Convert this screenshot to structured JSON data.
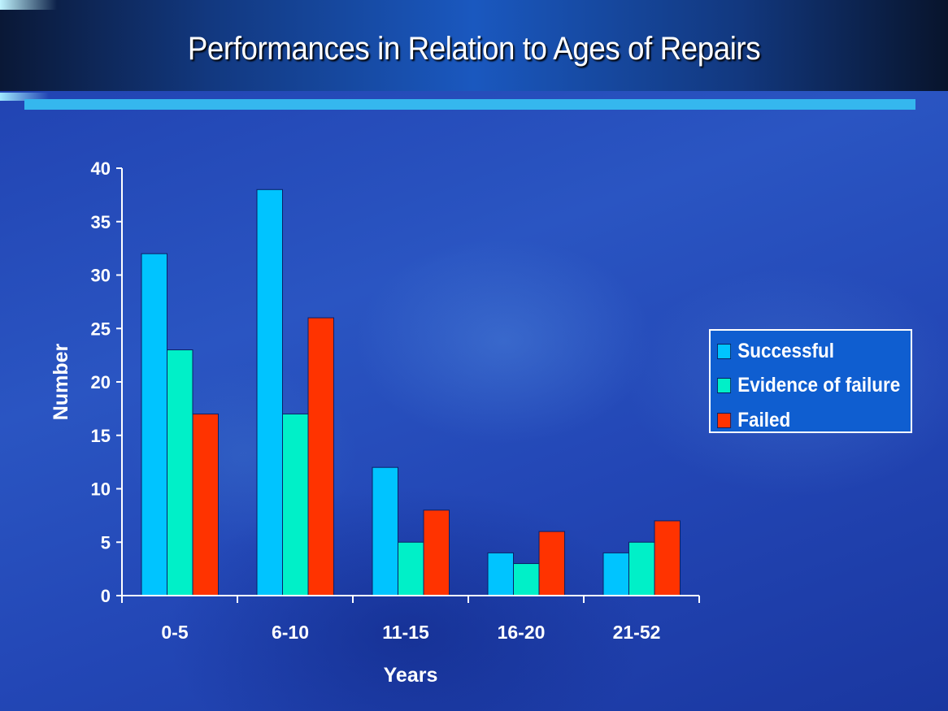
{
  "slide": {
    "title": "Performances in Relation to Ages of Repairs"
  },
  "colors": {
    "header_bar": "#12387f",
    "accent_bar": "#35b7ee",
    "legend_bg": "#0f5ed0",
    "text": "#ffffff"
  },
  "chart_data": {
    "type": "bar",
    "title": "",
    "xlabel": "Years",
    "ylabel": "Number",
    "categories": [
      "0-5",
      "6-10",
      "11-15",
      "16-20",
      "21-52"
    ],
    "ylim": [
      0,
      40
    ],
    "yticks": [
      0,
      5,
      10,
      15,
      20,
      25,
      30,
      35,
      40
    ],
    "grid": false,
    "legend_position": "right",
    "series": [
      {
        "name": "Successful",
        "color": "#00c4ff",
        "values": [
          32,
          38,
          12,
          4,
          4
        ]
      },
      {
        "name": "Evidence of failure",
        "color": "#00f0c8",
        "values": [
          23,
          17,
          5,
          3,
          5
        ]
      },
      {
        "name": "Failed",
        "color": "#ff3300",
        "values": [
          17,
          26,
          8,
          6,
          7
        ]
      }
    ]
  }
}
